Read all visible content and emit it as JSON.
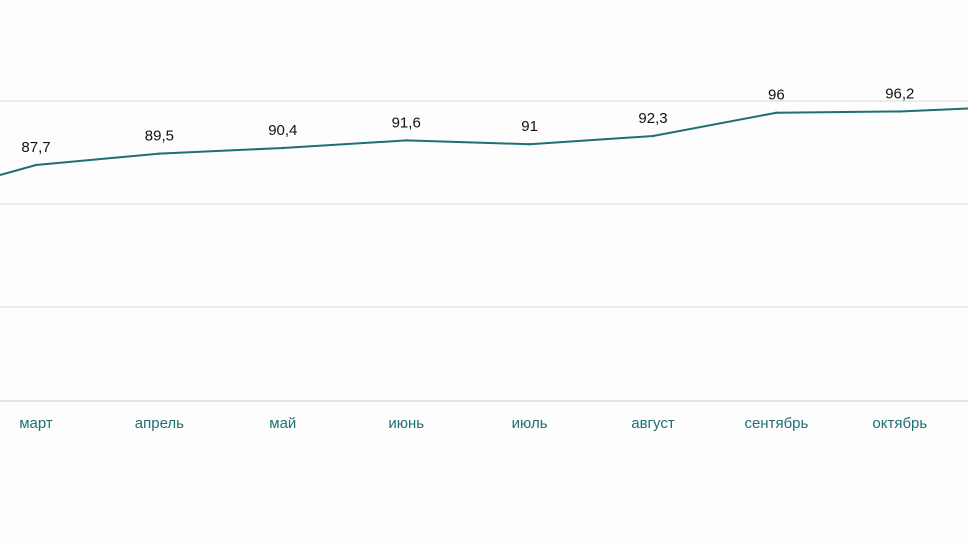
{
  "chart_data": {
    "type": "line",
    "title": "",
    "xlabel": "",
    "ylabel": "",
    "categories": [
      "март",
      "апрель",
      "май",
      "июнь",
      "июль",
      "август",
      "сентябрь",
      "октябрь"
    ],
    "series": [
      {
        "values": [
          87.7,
          89.5,
          90.4,
          91.6,
          91,
          92.3,
          96,
          96.2
        ],
        "labels": [
          "87,7",
          "89,5",
          "90,4",
          "91,6",
          "91",
          "92,3",
          "96",
          "96,2"
        ],
        "color": "#1f6f73"
      }
    ],
    "gridlines": true,
    "legend": "none"
  },
  "colors": {
    "line": "#1f6f73",
    "tick_text": "#1f6f73",
    "label_text": "#111111",
    "grid": "#d9d9d9"
  }
}
